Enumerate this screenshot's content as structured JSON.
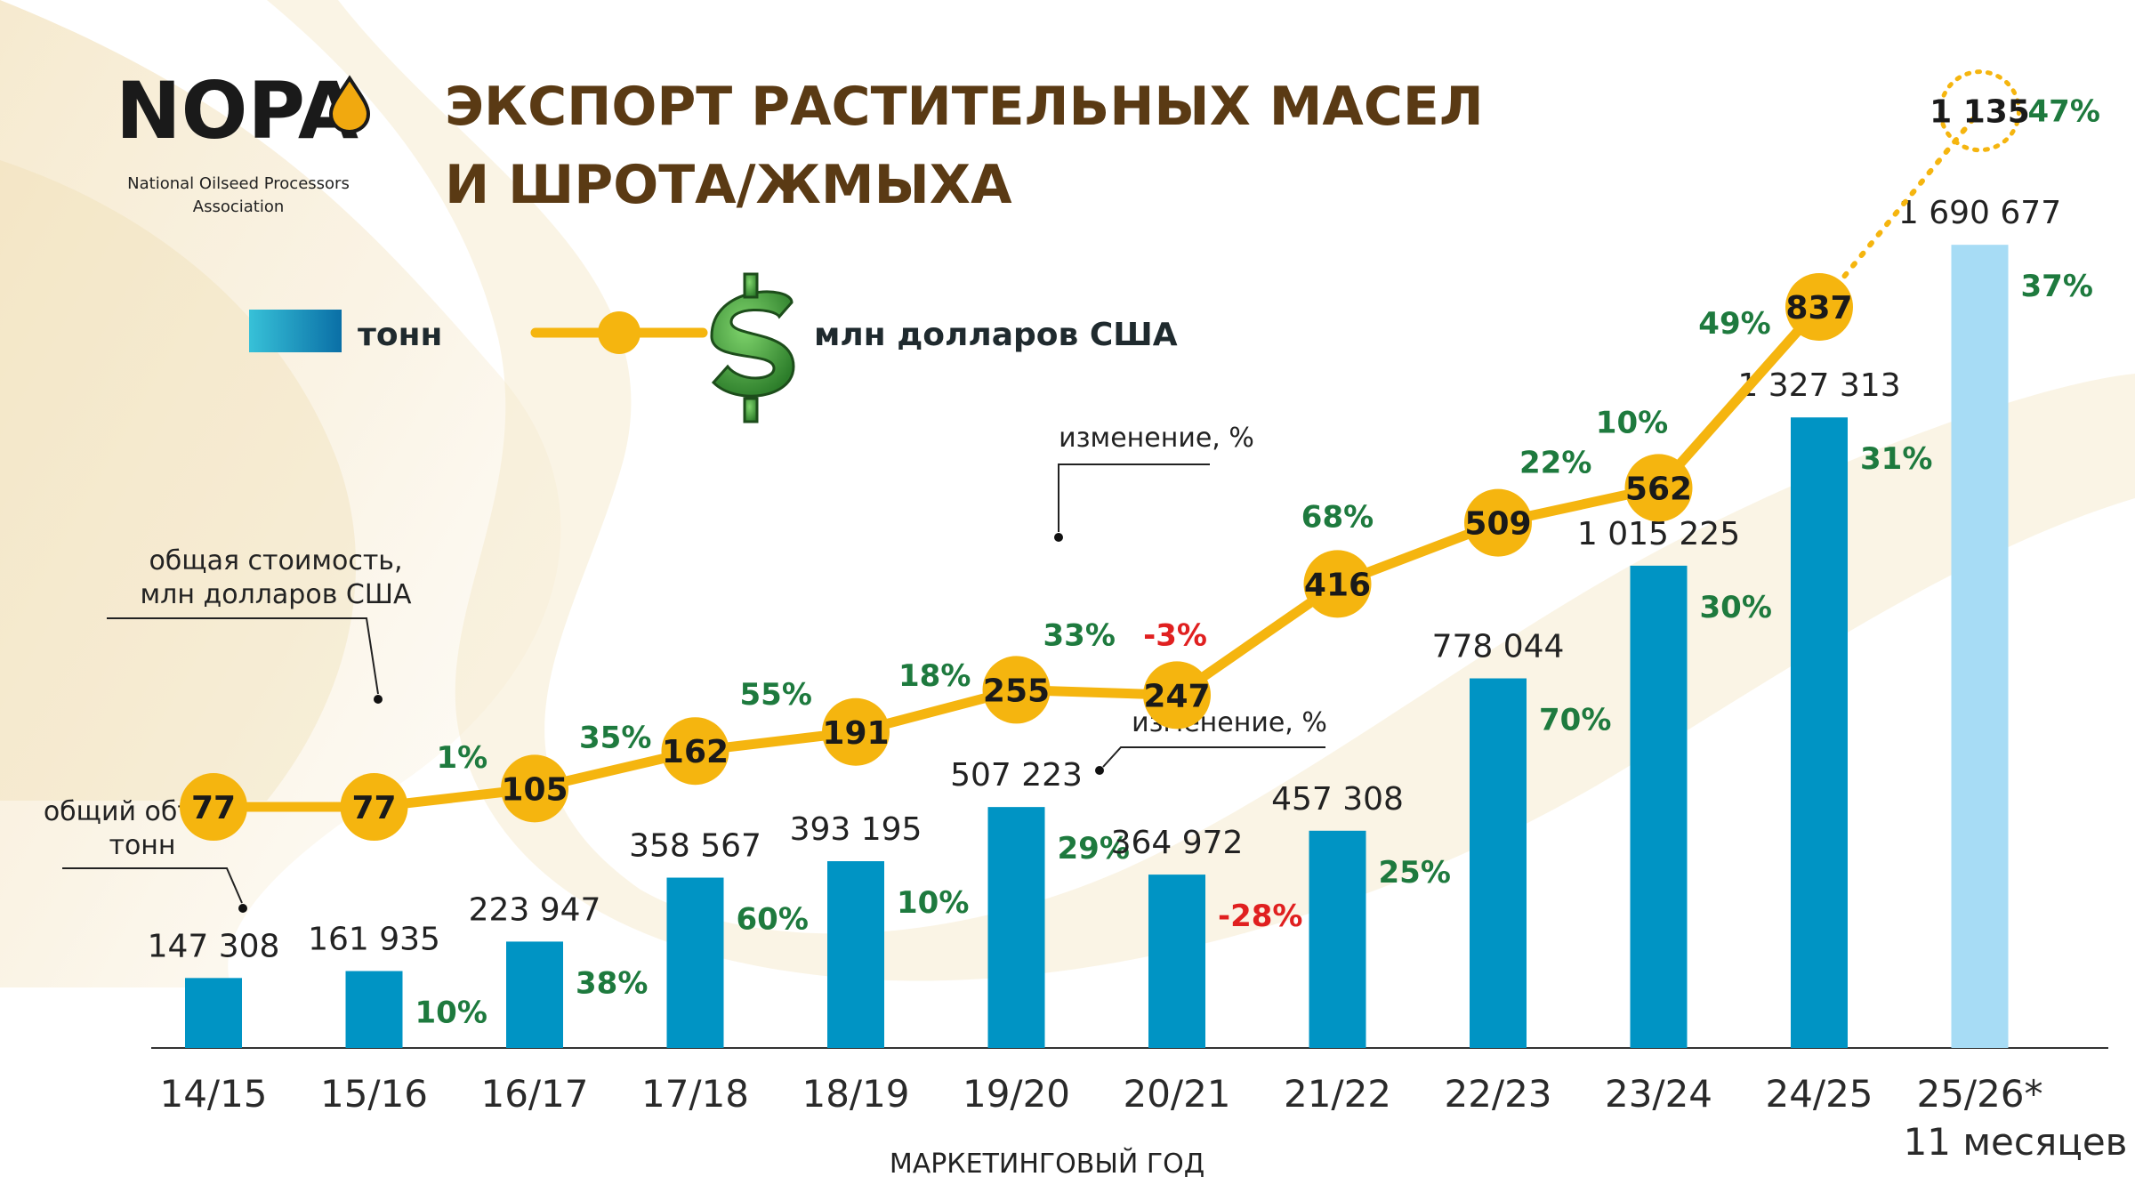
{
  "logo": {
    "name": "NOPA",
    "subtitle_line1": "National Oilseed Processors",
    "subtitle_line2": "Association"
  },
  "title": {
    "line1": "ЭКСПОРТ РАСТИТЕЛЬНЫХ МАСЕЛ",
    "line2": "И ШРОТА/ЖМЫХА"
  },
  "legend": {
    "tonnes_label": "тонн",
    "usd_label": "млн долларов США",
    "usd_icon": "dollar-sign-icon"
  },
  "annotations": {
    "value_total_line1": "общая стоимость,",
    "value_total_line2": "млн долларов США",
    "volume_total_line1": "общий объем,",
    "volume_total_line2": "тонн",
    "change_upper": "изменение, %",
    "change_lower": "изменение, %"
  },
  "colors": {
    "title": "#5a3a14",
    "bar": "#0094c4",
    "bar_forecast": "#a7dcf5",
    "line": "#f5b50f",
    "positive": "#1e7a3e",
    "negative": "#e02020",
    "text": "#222222"
  },
  "chart_data": {
    "type": "bar",
    "xlabel": "МАРКЕТИНГОВЫЙ ГОД",
    "categories": [
      "14/15",
      "15/16",
      "16/17",
      "17/18",
      "18/19",
      "19/20",
      "20/21",
      "21/22",
      "22/23",
      "23/24",
      "24/25",
      "25/26*"
    ],
    "category_note": {
      "index": 11,
      "text": "11 месяцев"
    },
    "series": [
      {
        "name": "тонн",
        "kind": "bar",
        "values": [
          147308,
          161935,
          223947,
          358567,
          393195,
          507223,
          364972,
          457308,
          778044,
          1015225,
          1327313,
          1690677
        ],
        "labels": [
          "147 308",
          "161 935",
          "223 947",
          "358 567",
          "393 195",
          "507 223",
          "364 972",
          "457 308",
          "778 044",
          "1 015 225",
          "1 327 313",
          "1 690 677"
        ],
        "change_pct": [
          null,
          "10%",
          "38%",
          "60%",
          "10%",
          "29%",
          "-28%",
          "25%",
          "70%",
          "30%",
          "31%",
          "37%"
        ]
      },
      {
        "name": "млн долларов США",
        "kind": "line",
        "values": [
          77,
          77,
          105,
          162,
          191,
          255,
          247,
          416,
          509,
          562,
          837,
          1135
        ],
        "labels": [
          "77",
          "77",
          "105",
          "162",
          "191",
          "255",
          "247",
          "416",
          "509",
          "562",
          "837",
          "1 135"
        ],
        "change_pct": [
          null,
          "1%",
          "35%",
          "55%",
          "18%",
          "33%",
          "-3%",
          "68%",
          "22%",
          "10%",
          "49%",
          "47%"
        ]
      }
    ]
  }
}
